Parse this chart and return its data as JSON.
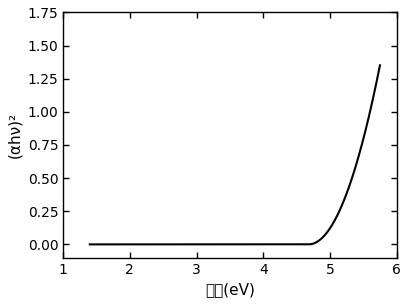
{
  "xlim": [
    1,
    6
  ],
  "ylim": [
    -0.1,
    1.75
  ],
  "xticks": [
    1,
    2,
    3,
    4,
    5,
    6
  ],
  "yticks": [
    0.0,
    0.25,
    0.5,
    0.75,
    1.0,
    1.25,
    1.5,
    1.75
  ],
  "xlabel": "能量(eV)",
  "ylabel": "(αhν)²",
  "line_color": "#000000",
  "line_width": 1.5,
  "bg_color": "#ffffff",
  "threshold": 4.68,
  "x_start": 1.4,
  "x_end": 5.75,
  "scale": 1.18
}
